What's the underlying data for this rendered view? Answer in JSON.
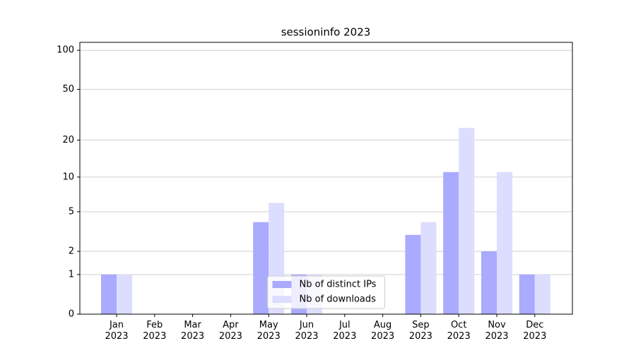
{
  "chart_data": {
    "type": "bar",
    "title": "sessioninfo 2023",
    "categories": [
      "Jan\n2023",
      "Feb\n2023",
      "Mar\n2023",
      "Apr\n2023",
      "May\n2023",
      "Jun\n2023",
      "Jul\n2023",
      "Aug\n2023",
      "Sep\n2023",
      "Oct\n2023",
      "Nov\n2023",
      "Dec\n2023"
    ],
    "series": [
      {
        "name": "Nb of distinct IPs",
        "color": "#aaaaff",
        "values": [
          1,
          0,
          0,
          0,
          4,
          1,
          0,
          0,
          3,
          11,
          2,
          1
        ]
      },
      {
        "name": "Nb of downloads",
        "color": "#ddddff",
        "values": [
          1,
          0,
          0,
          0,
          6,
          1,
          0,
          0,
          4,
          25,
          11,
          1
        ]
      }
    ],
    "yscale": "log1p",
    "ylim": [
      0,
      115
    ],
    "yticks": [
      0,
      1,
      2,
      5,
      10,
      20,
      50,
      100
    ],
    "grid": true,
    "legend": "lower center"
  }
}
